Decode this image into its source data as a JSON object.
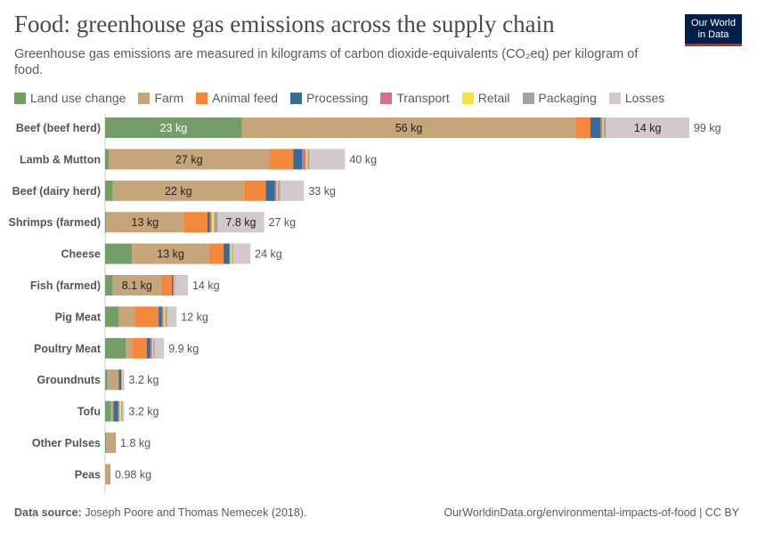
{
  "header": {
    "title": "Food: greenhouse gas emissions across the supply chain",
    "subtitle": "Greenhouse gas emissions are measured in kilograms of carbon dioxide-equivalents (CO₂eq) per kilogram of food."
  },
  "logo": {
    "line1": "Our World",
    "line2": "in Data",
    "bg_color": "#002147",
    "accent_color": "#ce261e"
  },
  "footer": {
    "source_label": "Data source:",
    "source_text": "Joseph Poore and Thomas Nemecek (2018).",
    "url_license": "OurWorldinData.org/environmental-impacts-of-food | CC BY"
  },
  "chart_data": {
    "type": "bar",
    "orientation": "horizontal",
    "stacked": true,
    "unit": "kg",
    "legend_position": "top",
    "xlim": [
      0,
      99
    ],
    "categories": [
      "Beef (beef herd)",
      "Lamb & Mutton",
      "Beef (dairy herd)",
      "Shrimps (farmed)",
      "Cheese",
      "Fish (farmed)",
      "Pig Meat",
      "Poultry Meat",
      "Groundnuts",
      "Tofu",
      "Other Pulses",
      "Peas"
    ],
    "series": [
      {
        "name": "Land use change",
        "color": "#759d6a",
        "values": [
          23,
          0.6,
          1.3,
          0.2,
          4.5,
          1.3,
          2.3,
          3.5,
          0.4,
          1.0,
          0.2,
          0.0
        ]
      },
      {
        "name": "Farm",
        "color": "#c7a57b",
        "values": [
          56,
          27,
          22,
          13,
          13,
          8.1,
          2.7,
          1.0,
          1.9,
          0.4,
          1.5,
          0.8
        ]
      },
      {
        "name": "Animal feed",
        "color": "#f4883a",
        "values": [
          2.5,
          4.0,
          3.7,
          4.0,
          2.4,
          1.8,
          4.0,
          2.5,
          0.0,
          0.0,
          0.0,
          0.0
        ]
      },
      {
        "name": "Processing",
        "color": "#346c9b",
        "values": [
          1.7,
          1.5,
          1.5,
          0.4,
          1.0,
          0.2,
          0.5,
          0.6,
          0.4,
          0.8,
          0.0,
          0.0
        ]
      },
      {
        "name": "Transport",
        "color": "#d3708a",
        "values": [
          0.3,
          0.6,
          0.3,
          0.3,
          0.1,
          0.2,
          0.3,
          0.3,
          0.1,
          0.2,
          0.1,
          0.1
        ]
      },
      {
        "name": "Retail",
        "color": "#f0e342",
        "values": [
          0.2,
          0.3,
          0.2,
          0.4,
          0.3,
          0.1,
          0.3,
          0.2,
          0.2,
          0.3,
          0.0,
          0.0
        ]
      },
      {
        "name": "Packaging",
        "color": "#a2a2a2",
        "values": [
          0.4,
          0.3,
          0.4,
          0.6,
          0.2,
          0.1,
          0.3,
          0.2,
          0.1,
          0.2,
          0.0,
          0.0
        ]
      },
      {
        "name": "Losses",
        "color": "#d3c8cc",
        "values": [
          14,
          6.0,
          4.0,
          7.8,
          2.9,
          2.1,
          1.6,
          1.6,
          0.1,
          0.3,
          0.0,
          0.0
        ]
      }
    ],
    "totals": [
      99,
      40,
      33,
      27,
      24,
      14,
      12,
      9.9,
      3.2,
      3.2,
      1.8,
      0.98
    ],
    "total_labels": [
      "99 kg",
      "40 kg",
      "33 kg",
      "27 kg",
      "24 kg",
      "14 kg",
      "12 kg",
      "9.9 kg",
      "3.2 kg",
      "3.2 kg",
      "1.8 kg",
      "0.98 kg"
    ],
    "segment_labels": [
      {
        "category": 0,
        "series": 0,
        "text": "23 kg"
      },
      {
        "category": 0,
        "series": 1,
        "text": "56 kg"
      },
      {
        "category": 0,
        "series": 7,
        "text": "14 kg"
      },
      {
        "category": 1,
        "series": 1,
        "text": "27 kg"
      },
      {
        "category": 2,
        "series": 1,
        "text": "22 kg"
      },
      {
        "category": 3,
        "series": 1,
        "text": "13 kg"
      },
      {
        "category": 3,
        "series": 7,
        "text": "7.8 kg"
      },
      {
        "category": 4,
        "series": 1,
        "text": "13 kg"
      },
      {
        "category": 5,
        "series": 1,
        "text": "8.1 kg"
      }
    ]
  }
}
